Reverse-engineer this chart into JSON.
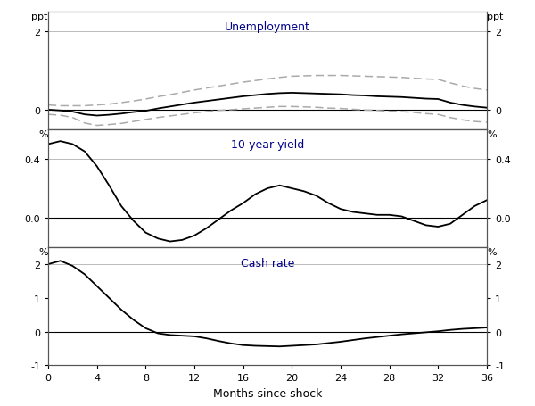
{
  "panel_titles": [
    "Unemployment",
    "10-year yield",
    "Cash rate"
  ],
  "xlabel": "Months since shock",
  "x": [
    0,
    1,
    2,
    3,
    4,
    5,
    6,
    7,
    8,
    9,
    10,
    11,
    12,
    13,
    14,
    15,
    16,
    17,
    18,
    19,
    20,
    21,
    22,
    23,
    24,
    25,
    26,
    27,
    28,
    29,
    30,
    31,
    32,
    33,
    34,
    35,
    36
  ],
  "unemp_main": [
    0.0,
    -0.02,
    -0.05,
    -0.12,
    -0.15,
    -0.13,
    -0.1,
    -0.06,
    -0.03,
    0.03,
    0.08,
    0.13,
    0.18,
    0.22,
    0.26,
    0.3,
    0.34,
    0.37,
    0.4,
    0.42,
    0.43,
    0.42,
    0.41,
    0.4,
    0.39,
    0.37,
    0.36,
    0.34,
    0.33,
    0.32,
    0.3,
    0.28,
    0.27,
    0.18,
    0.12,
    0.08,
    0.05
  ],
  "unemp_upper": [
    0.12,
    0.1,
    0.1,
    0.1,
    0.12,
    0.14,
    0.18,
    0.22,
    0.27,
    0.33,
    0.38,
    0.44,
    0.5,
    0.55,
    0.6,
    0.65,
    0.7,
    0.74,
    0.78,
    0.82,
    0.85,
    0.86,
    0.87,
    0.87,
    0.87,
    0.86,
    0.85,
    0.84,
    0.83,
    0.82,
    0.8,
    0.78,
    0.77,
    0.68,
    0.6,
    0.54,
    0.5
  ],
  "unemp_lower": [
    -0.12,
    -0.14,
    -0.2,
    -0.34,
    -0.4,
    -0.38,
    -0.35,
    -0.3,
    -0.25,
    -0.2,
    -0.16,
    -0.12,
    -0.08,
    -0.05,
    -0.02,
    0.0,
    0.02,
    0.04,
    0.06,
    0.08,
    0.08,
    0.07,
    0.06,
    0.04,
    0.03,
    0.01,
    -0.01,
    -0.02,
    -0.04,
    -0.05,
    -0.07,
    -0.1,
    -0.12,
    -0.2,
    -0.26,
    -0.3,
    -0.32
  ],
  "yield10_main": [
    0.5,
    0.52,
    0.5,
    0.45,
    0.35,
    0.22,
    0.08,
    -0.02,
    -0.1,
    -0.14,
    -0.16,
    -0.15,
    -0.12,
    -0.07,
    -0.01,
    0.05,
    0.1,
    0.16,
    0.2,
    0.22,
    0.2,
    0.18,
    0.15,
    0.1,
    0.06,
    0.04,
    0.03,
    0.02,
    0.02,
    0.01,
    -0.02,
    -0.05,
    -0.06,
    -0.04,
    0.02,
    0.08,
    0.12
  ],
  "cashrate_main": [
    2.0,
    2.1,
    1.95,
    1.7,
    1.35,
    1.0,
    0.65,
    0.35,
    0.1,
    -0.05,
    -0.1,
    -0.12,
    -0.14,
    -0.2,
    -0.28,
    -0.35,
    -0.4,
    -0.42,
    -0.43,
    -0.44,
    -0.42,
    -0.4,
    -0.38,
    -0.34,
    -0.3,
    -0.25,
    -0.2,
    -0.16,
    -0.12,
    -0.08,
    -0.05,
    -0.02,
    0.01,
    0.05,
    0.08,
    0.1,
    0.12
  ],
  "unemp_ylim": [
    -0.5,
    2.5
  ],
  "unemp_yticks": [
    0,
    2
  ],
  "unemp_yticklabels": [
    "0",
    "2"
  ],
  "yield_ylim": [
    -0.2,
    0.6
  ],
  "yield_yticks": [
    0.0,
    0.4
  ],
  "yield_yticklabels": [
    "0.0",
    "0.4"
  ],
  "cash_ylim": [
    -1.0,
    2.5
  ],
  "cash_yticks": [
    -1,
    0,
    1,
    2
  ],
  "cash_yticklabels": [
    "-1",
    "0",
    "1",
    "2"
  ],
  "xticks": [
    0,
    4,
    8,
    12,
    16,
    20,
    24,
    28,
    32,
    36
  ],
  "main_color": "#000000",
  "ci_color": "#aaaaaa",
  "grid_color": "#bbbbbb",
  "title_color": "#00008B",
  "bg_color": "#ffffff"
}
